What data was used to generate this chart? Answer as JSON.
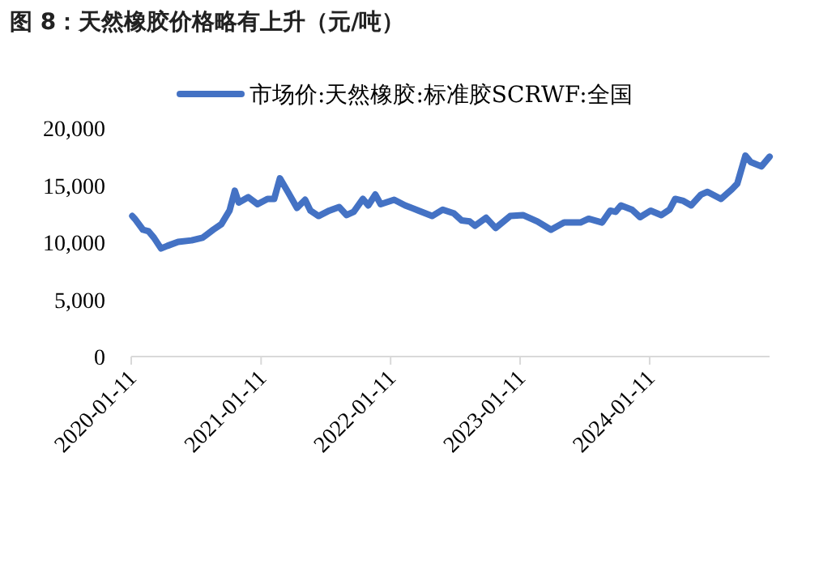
{
  "chart_data": {
    "type": "line",
    "title": "图 8：天然橡胶价格略有上升（元/吨）",
    "x": [
      "2020-01-14",
      "2020-01-21",
      "2020-02-13",
      "2020-02-29",
      "2020-03-15",
      "2020-04-04",
      "2020-04-22",
      "2020-05-22",
      "2020-06-29",
      "2020-07-30",
      "2020-08-29",
      "2020-09-21",
      "2020-10-14",
      "2020-10-29",
      "2020-11-09",
      "2020-12-06",
      "2021-01-01",
      "2021-01-29",
      "2021-02-17",
      "2021-03-05",
      "2021-03-30",
      "2021-04-22",
      "2021-05-15",
      "2021-05-30",
      "2021-06-22",
      "2021-07-22",
      "2021-08-19",
      "2021-09-09",
      "2021-09-29",
      "2021-10-25",
      "2021-11-09",
      "2021-11-29",
      "2021-12-14",
      "2022-01-21",
      "2022-02-21",
      "2022-03-31",
      "2022-05-08",
      "2022-06-07",
      "2022-07-08",
      "2022-07-30",
      "2022-08-22",
      "2022-09-06",
      "2022-10-07",
      "2022-11-03",
      "2022-12-14",
      "2023-01-19",
      "2023-03-01",
      "2023-04-08",
      "2023-05-15",
      "2023-06-30",
      "2023-07-23",
      "2023-08-30",
      "2023-09-22",
      "2023-10-07",
      "2023-10-22",
      "2023-11-22",
      "2023-12-15",
      "2024-01-14",
      "2024-02-13",
      "2024-03-07",
      "2024-03-23",
      "2024-04-15",
      "2024-05-07",
      "2024-06-04",
      "2024-06-22",
      "2024-07-30",
      "2024-08-30",
      "2024-09-14",
      "2024-10-07",
      "2024-10-22",
      "2024-11-21",
      "2024-12-14"
    ],
    "series": [
      {
        "name": "市场价:天然橡胶:标准胶SCRWF:全国",
        "color": "#4472c4",
        "values": [
          12300,
          12060,
          11100,
          10960,
          10400,
          9460,
          9690,
          10030,
          10170,
          10400,
          11100,
          11590,
          12770,
          14510,
          13480,
          13950,
          13330,
          13800,
          13800,
          15600,
          14280,
          13010,
          13720,
          12770,
          12300,
          12770,
          13090,
          12380,
          12670,
          13800,
          13230,
          14180,
          13330,
          13720,
          13230,
          12770,
          12300,
          12860,
          12530,
          11910,
          11820,
          11450,
          12150,
          11250,
          12300,
          12380,
          11820,
          11100,
          11730,
          11730,
          12060,
          11730,
          12770,
          12670,
          13230,
          12860,
          12200,
          12770,
          12380,
          12860,
          13800,
          13620,
          13230,
          14180,
          14420,
          13800,
          14650,
          15130,
          17590,
          17020,
          16640,
          17490
        ]
      }
    ],
    "xlim": [
      "2020-01-11",
      "2024-12-14"
    ],
    "xticks": [
      {
        "value": "2020-01-11",
        "label": "2020-01-11"
      },
      {
        "value": "2021-01-11",
        "label": "2021-01-11"
      },
      {
        "value": "2022-01-11",
        "label": "2022-01-11"
      },
      {
        "value": "2023-01-11",
        "label": "2023-01-11"
      },
      {
        "value": "2024-01-11",
        "label": "2024-01-11"
      }
    ],
    "ylim": [
      0,
      20000
    ],
    "yticks": [
      0,
      {
        "value": 5000,
        "label": "5,000"
      },
      {
        "value": 10000,
        "label": "10,000"
      },
      {
        "value": 15000,
        "label": "15,000"
      },
      {
        "value": 20000,
        "label": "20,000"
      }
    ],
    "grid": false,
    "legend": "top",
    "marker": "none",
    "line_style": "solid"
  }
}
